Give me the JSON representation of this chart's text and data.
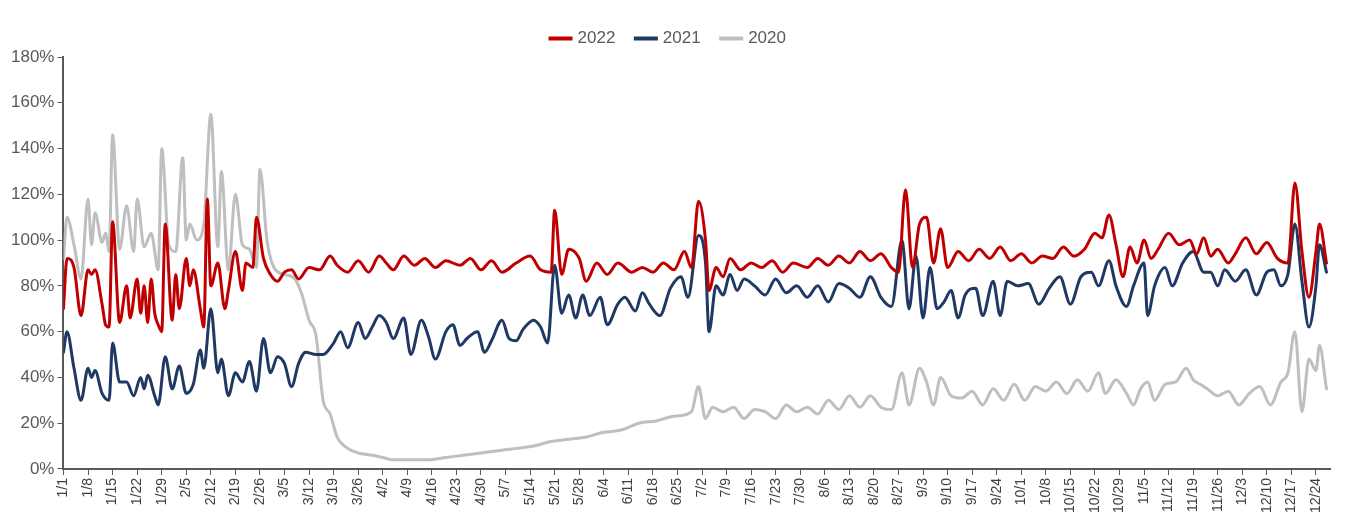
{
  "chart_data": {
    "type": "line",
    "xlim": [
      "--01-01",
      "--12-28"
    ],
    "xticks": [
      {
        "value": "--01-01",
        "label": "1/1"
      },
      {
        "value": "--01-08",
        "label": "1/8"
      },
      {
        "value": "--01-15",
        "label": "1/15"
      },
      {
        "value": "--01-22",
        "label": "1/22"
      },
      {
        "value": "--01-29",
        "label": "1/29"
      },
      {
        "value": "--02-05",
        "label": "2/5"
      },
      {
        "value": "--02-12",
        "label": "2/12"
      },
      {
        "value": "--02-19",
        "label": "2/19"
      },
      {
        "value": "--02-26",
        "label": "2/26"
      },
      {
        "value": "--03-05",
        "label": "3/5"
      },
      {
        "value": "--03-12",
        "label": "3/12"
      },
      {
        "value": "--03-19",
        "label": "3/19"
      },
      {
        "value": "--03-26",
        "label": "3/26"
      },
      {
        "value": "--04-02",
        "label": "4/2"
      },
      {
        "value": "--04-09",
        "label": "4/9"
      },
      {
        "value": "--04-16",
        "label": "4/16"
      },
      {
        "value": "--04-23",
        "label": "4/23"
      },
      {
        "value": "--04-30",
        "label": "4/30"
      },
      {
        "value": "--05-07",
        "label": "5/7"
      },
      {
        "value": "--05-14",
        "label": "5/14"
      },
      {
        "value": "--05-21",
        "label": "5/21"
      },
      {
        "value": "--05-28",
        "label": "5/28"
      },
      {
        "value": "--06-04",
        "label": "6/4"
      },
      {
        "value": "--06-11",
        "label": "6/11"
      },
      {
        "value": "--06-18",
        "label": "6/18"
      },
      {
        "value": "--06-25",
        "label": "6/25"
      },
      {
        "value": "--07-02",
        "label": "7/2"
      },
      {
        "value": "--07-09",
        "label": "7/9"
      },
      {
        "value": "--07-16",
        "label": "7/16"
      },
      {
        "value": "--07-23",
        "label": "7/23"
      },
      {
        "value": "--07-30",
        "label": "7/30"
      },
      {
        "value": "--08-06",
        "label": "8/6"
      },
      {
        "value": "--08-13",
        "label": "8/13"
      },
      {
        "value": "--08-20",
        "label": "8/20"
      },
      {
        "value": "--08-27",
        "label": "8/27"
      },
      {
        "value": "--09-03",
        "label": "9/3"
      },
      {
        "value": "--09-10",
        "label": "9/10"
      },
      {
        "value": "--09-17",
        "label": "9/17"
      },
      {
        "value": "--09-24",
        "label": "9/24"
      },
      {
        "value": "--10-01",
        "label": "10/1"
      },
      {
        "value": "--10-08",
        "label": "10/8"
      },
      {
        "value": "--10-15",
        "label": "10/15"
      },
      {
        "value": "--10-22",
        "label": "10/22"
      },
      {
        "value": "--10-29",
        "label": "10/29"
      },
      {
        "value": "--11-05",
        "label": "11/5"
      },
      {
        "value": "--11-12",
        "label": "11/12"
      },
      {
        "value": "--11-19",
        "label": "11/19"
      },
      {
        "value": "--11-26",
        "label": "11/26"
      },
      {
        "value": "--12-03",
        "label": "12/3"
      },
      {
        "value": "--12-10",
        "label": "12/10"
      },
      {
        "value": "--12-17",
        "label": "12/17"
      },
      {
        "value": "--12-24",
        "label": "12/24"
      }
    ],
    "ylim": [
      0,
      180
    ],
    "yticks": [
      {
        "value": 0,
        "label": "0%"
      },
      {
        "value": 20,
        "label": "20%"
      },
      {
        "value": 40,
        "label": "40%"
      },
      {
        "value": 60,
        "label": "60%"
      },
      {
        "value": 80,
        "label": "80%"
      },
      {
        "value": 100,
        "label": "100%"
      },
      {
        "value": 120,
        "label": "120%"
      },
      {
        "value": 140,
        "label": "140%"
      },
      {
        "value": 160,
        "label": "160%"
      },
      {
        "value": 180,
        "label": "180%"
      }
    ],
    "grid": false,
    "legend": "top",
    "marker": "none",
    "line_style": "solid",
    "series": [
      {
        "name": "2022",
        "color": "#c00000",
        "x": [
          "--01-01",
          "--01-02",
          "--01-04",
          "--01-06",
          "--01-08",
          "--01-09",
          "--01-10",
          "--01-12",
          "--01-13",
          "--01-14",
          "--01-15",
          "--01-17",
          "--01-19",
          "--01-20",
          "--01-22",
          "--01-23",
          "--01-24",
          "--01-25",
          "--01-26",
          "--01-27",
          "--01-28",
          "--01-29",
          "--01-30",
          "--02-01",
          "--02-02",
          "--02-03",
          "--02-05",
          "--02-06",
          "--02-07",
          "--02-09",
          "--02-10",
          "--02-11",
          "--02-12",
          "--02-14",
          "--02-16",
          "--02-17",
          "--02-19",
          "--02-21",
          "--02-22",
          "--02-24",
          "--02-25",
          "--02-27",
          "--03-01",
          "--03-03",
          "--03-05",
          "--03-07",
          "--03-09",
          "--03-12",
          "--03-15",
          "--03-18",
          "--03-20",
          "--03-23",
          "--03-26",
          "--03-29",
          "--04-01",
          "--04-03",
          "--04-05",
          "--04-08",
          "--04-11",
          "--04-14",
          "--04-17",
          "--04-20",
          "--04-24",
          "--04-27",
          "--04-30",
          "--05-03",
          "--05-06",
          "--05-10",
          "--05-14",
          "--05-17",
          "--05-20",
          "--05-21",
          "--05-23",
          "--05-25",
          "--05-28",
          "--05-30",
          "--06-02",
          "--06-05",
          "--06-08",
          "--06-12",
          "--06-15",
          "--06-18",
          "--06-21",
          "--06-24",
          "--06-27",
          "--06-29",
          "--07-01",
          "--07-03",
          "--07-04",
          "--07-06",
          "--07-08",
          "--07-10",
          "--07-13",
          "--07-16",
          "--07-19",
          "--07-22",
          "--07-25",
          "--07-28",
          "--08-01",
          "--08-04",
          "--08-07",
          "--08-10",
          "--08-13",
          "--08-16",
          "--08-19",
          "--08-22",
          "--08-25",
          "--08-27",
          "--08-29",
          "--08-31",
          "--09-02",
          "--09-04",
          "--09-06",
          "--09-08",
          "--09-10",
          "--09-13",
          "--09-16",
          "--09-19",
          "--09-22",
          "--09-25",
          "--09-28",
          "--10-01",
          "--10-04",
          "--10-07",
          "--10-10",
          "--10-13",
          "--10-16",
          "--10-19",
          "--10-22",
          "--10-24",
          "--10-26",
          "--10-28",
          "--10-30",
          "--11-01",
          "--11-03",
          "--11-05",
          "--11-07",
          "--11-09",
          "--11-12",
          "--11-15",
          "--11-18",
          "--11-20",
          "--11-22",
          "--11-24",
          "--11-26",
          "--11-29",
          "--12-01",
          "--12-04",
          "--12-07",
          "--12-10",
          "--12-13",
          "--12-16",
          "--12-18",
          "--12-20",
          "--12-22",
          "--12-24",
          "--12-25",
          "--12-27"
        ],
        "values": [
          70,
          92,
          88,
          67,
          87,
          85,
          87,
          72,
          63,
          62,
          108,
          64,
          80,
          66,
          83,
          68,
          80,
          64,
          83,
          68,
          63,
          60,
          107,
          65,
          85,
          70,
          92,
          80,
          87,
          70,
          62,
          118,
          80,
          90,
          70,
          78,
          95,
          78,
          90,
          88,
          110,
          92,
          85,
          82,
          86,
          87,
          83,
          88,
          87,
          93,
          89,
          86,
          91,
          86,
          93,
          90,
          87,
          93,
          89,
          92,
          88,
          91,
          89,
          92,
          87,
          91,
          86,
          90,
          93,
          87,
          86,
          113,
          85,
          96,
          92,
          82,
          90,
          85,
          90,
          86,
          88,
          86,
          90,
          87,
          95,
          88,
          117,
          100,
          78,
          88,
          84,
          92,
          87,
          90,
          88,
          91,
          86,
          90,
          88,
          92,
          89,
          93,
          90,
          95,
          91,
          94,
          88,
          86,
          122,
          88,
          107,
          110,
          90,
          105,
          88,
          95,
          91,
          96,
          92,
          97,
          91,
          94,
          90,
          93,
          92,
          97,
          93,
          96,
          103,
          101,
          111,
          98,
          84,
          97,
          90,
          100,
          92,
          96,
          103,
          98,
          100,
          94,
          101,
          93,
          96,
          90,
          94,
          101,
          94,
          99,
          92,
          90,
          125,
          95,
          75,
          95,
          107,
          90
        ]
      },
      {
        "name": "2021",
        "color": "#1f3864",
        "x": [
          "--01-01",
          "--01-02",
          "--01-04",
          "--01-06",
          "--01-08",
          "--01-09",
          "--01-10",
          "--01-12",
          "--01-14",
          "--01-15",
          "--01-17",
          "--01-19",
          "--01-21",
          "--01-23",
          "--01-24",
          "--01-25",
          "--01-27",
          "--01-28",
          "--01-30",
          "--02-01",
          "--02-03",
          "--02-05",
          "--02-07",
          "--02-09",
          "--02-10",
          "--02-12",
          "--02-14",
          "--02-15",
          "--02-17",
          "--02-19",
          "--02-21",
          "--02-23",
          "--02-25",
          "--02-27",
          "--03-01",
          "--03-03",
          "--03-05",
          "--03-07",
          "--03-09",
          "--03-11",
          "--03-14",
          "--03-16",
          "--03-19",
          "--03-21",
          "--03-23",
          "--03-26",
          "--03-28",
          "--03-30",
          "--04-01",
          "--04-03",
          "--04-05",
          "--04-08",
          "--04-10",
          "--04-13",
          "--04-15",
          "--04-17",
          "--04-20",
          "--04-22",
          "--04-24",
          "--04-26",
          "--04-29",
          "--05-01",
          "--05-03",
          "--05-06",
          "--05-08",
          "--05-10",
          "--05-12",
          "--05-15",
          "--05-17",
          "--05-19",
          "--05-21",
          "--05-23",
          "--05-25",
          "--05-27",
          "--05-29",
          "--05-31",
          "--06-03",
          "--06-05",
          "--06-08",
          "--06-10",
          "--06-13",
          "--06-15",
          "--06-17",
          "--06-20",
          "--06-23",
          "--06-26",
          "--06-28",
          "--07-01",
          "--07-03",
          "--07-04",
          "--07-06",
          "--07-08",
          "--07-10",
          "--07-12",
          "--07-14",
          "--07-17",
          "--07-20",
          "--07-23",
          "--07-26",
          "--07-29",
          "--08-01",
          "--08-04",
          "--08-07",
          "--08-10",
          "--08-13",
          "--08-16",
          "--08-19",
          "--08-22",
          "--08-25",
          "--08-28",
          "--08-30",
          "--09-01",
          "--09-03",
          "--09-05",
          "--09-07",
          "--09-09",
          "--09-11",
          "--09-13",
          "--09-15",
          "--09-18",
          "--09-20",
          "--09-23",
          "--09-25",
          "--09-27",
          "--09-30",
          "--10-03",
          "--10-06",
          "--10-09",
          "--10-12",
          "--10-15",
          "--10-18",
          "--10-21",
          "--10-23",
          "--10-26",
          "--10-28",
          "--10-31",
          "--11-02",
          "--11-05",
          "--11-06",
          "--11-08",
          "--11-11",
          "--11-13",
          "--11-16",
          "--11-19",
          "--11-22",
          "--11-24",
          "--11-26",
          "--11-28",
          "--12-01",
          "--12-04",
          "--12-07",
          "--12-10",
          "--12-12",
          "--12-14",
          "--12-16",
          "--12-18",
          "--12-20",
          "--12-22",
          "--12-24",
          "--12-25",
          "--12-27"
        ],
        "values": [
          51,
          60,
          44,
          30,
          44,
          40,
          43,
          33,
          30,
          55,
          38,
          38,
          32,
          40,
          35,
          41,
          32,
          28,
          49,
          35,
          45,
          33,
          37,
          52,
          44,
          70,
          42,
          48,
          32,
          42,
          38,
          47,
          34,
          57,
          42,
          49,
          46,
          36,
          46,
          51,
          50,
          50,
          55,
          60,
          53,
          64,
          57,
          62,
          67,
          64,
          57,
          66,
          50,
          65,
          58,
          48,
          60,
          63,
          54,
          57,
          60,
          51,
          56,
          65,
          57,
          56,
          61,
          65,
          62,
          55,
          89,
          68,
          76,
          66,
          76,
          67,
          75,
          63,
          72,
          75,
          69,
          77,
          72,
          67,
          79,
          84,
          75,
          102,
          90,
          60,
          80,
          76,
          85,
          78,
          83,
          80,
          76,
          83,
          77,
          80,
          75,
          80,
          73,
          81,
          79,
          75,
          84,
          75,
          71,
          100,
          70,
          93,
          66,
          88,
          70,
          73,
          78,
          66,
          76,
          79,
          67,
          82,
          67,
          82,
          80,
          81,
          72,
          79,
          84,
          72,
          84,
          86,
          80,
          91,
          80,
          71,
          80,
          90,
          67,
          80,
          88,
          80,
          90,
          95,
          86,
          86,
          80,
          87,
          82,
          87,
          76,
          86,
          87,
          80,
          85,
          107,
          82,
          62,
          80,
          98,
          86
        ]
      },
      {
        "name": "2020",
        "color": "#bfbfbf",
        "x": [
          "--01-01",
          "--01-02",
          "--01-04",
          "--01-06",
          "--01-08",
          "--01-09",
          "--01-10",
          "--01-12",
          "--01-13",
          "--01-14",
          "--01-15",
          "--01-17",
          "--01-19",
          "--01-21",
          "--01-22",
          "--01-24",
          "--01-26",
          "--01-28",
          "--01-29",
          "--01-31",
          "--02-02",
          "--02-04",
          "--02-05",
          "--02-06",
          "--02-08",
          "--02-10",
          "--02-12",
          "--02-14",
          "--02-15",
          "--02-17",
          "--02-19",
          "--02-21",
          "--02-23",
          "--02-25",
          "--02-26",
          "--02-28",
          "--03-02",
          "--03-05",
          "--03-08",
          "--03-10",
          "--03-12",
          "--03-14",
          "--03-16",
          "--03-18",
          "--03-20",
          "--03-23",
          "--03-26",
          "--03-30",
          "--04-02",
          "--04-05",
          "--04-10",
          "--04-15",
          "--04-20",
          "--04-25",
          "--04-30",
          "--05-05",
          "--05-10",
          "--05-15",
          "--05-20",
          "--05-25",
          "--05-30",
          "--06-04",
          "--06-09",
          "--06-14",
          "--06-19",
          "--06-24",
          "--06-29",
          "--07-01",
          "--07-03",
          "--07-05",
          "--07-08",
          "--07-11",
          "--07-14",
          "--07-17",
          "--07-20",
          "--07-23",
          "--07-26",
          "--07-29",
          "--08-01",
          "--08-04",
          "--08-07",
          "--08-10",
          "--08-13",
          "--08-16",
          "--08-19",
          "--08-22",
          "--08-25",
          "--08-28",
          "--08-30",
          "--09-02",
          "--09-04",
          "--09-06",
          "--09-08",
          "--09-11",
          "--09-14",
          "--09-17",
          "--09-20",
          "--09-23",
          "--09-26",
          "--09-29",
          "--10-02",
          "--10-05",
          "--10-08",
          "--10-11",
          "--10-14",
          "--10-17",
          "--10-20",
          "--10-23",
          "--10-25",
          "--10-28",
          "--10-31",
          "--11-02",
          "--11-04",
          "--11-06",
          "--11-08",
          "--11-11",
          "--11-14",
          "--11-17",
          "--11-19",
          "--11-21",
          "--11-23",
          "--11-26",
          "--11-29",
          "--12-02",
          "--12-05",
          "--12-08",
          "--12-11",
          "--12-14",
          "--12-16",
          "--12-18",
          "--12-20",
          "--12-22",
          "--12-24",
          "--12-25",
          "--12-27"
        ],
        "values": [
          92,
          110,
          98,
          83,
          118,
          98,
          112,
          99,
          103,
          95,
          146,
          96,
          115,
          95,
          118,
          97,
          103,
          87,
          140,
          98,
          95,
          136,
          100,
          107,
          100,
          107,
          155,
          97,
          130,
          87,
          120,
          98,
          96,
          88,
          131,
          100,
          88,
          85,
          83,
          76,
          65,
          58,
          30,
          24,
          14,
          9,
          7,
          6,
          5,
          4,
          4,
          4,
          5,
          6,
          7,
          8,
          9,
          10,
          12,
          13,
          14,
          16,
          17,
          20,
          21,
          23,
          25,
          36,
          22,
          27,
          25,
          27,
          22,
          26,
          25,
          22,
          28,
          25,
          27,
          24,
          30,
          26,
          32,
          27,
          32,
          27,
          26,
          42,
          28,
          44,
          38,
          28,
          40,
          32,
          31,
          34,
          28,
          35,
          30,
          37,
          30,
          36,
          34,
          38,
          33,
          39,
          34,
          42,
          33,
          39,
          33,
          28,
          35,
          38,
          30,
          37,
          38,
          44,
          39,
          37,
          35,
          32,
          34,
          28,
          33,
          36,
          28,
          38,
          42,
          60,
          25,
          48,
          43,
          54,
          35
        ]
      }
    ]
  }
}
